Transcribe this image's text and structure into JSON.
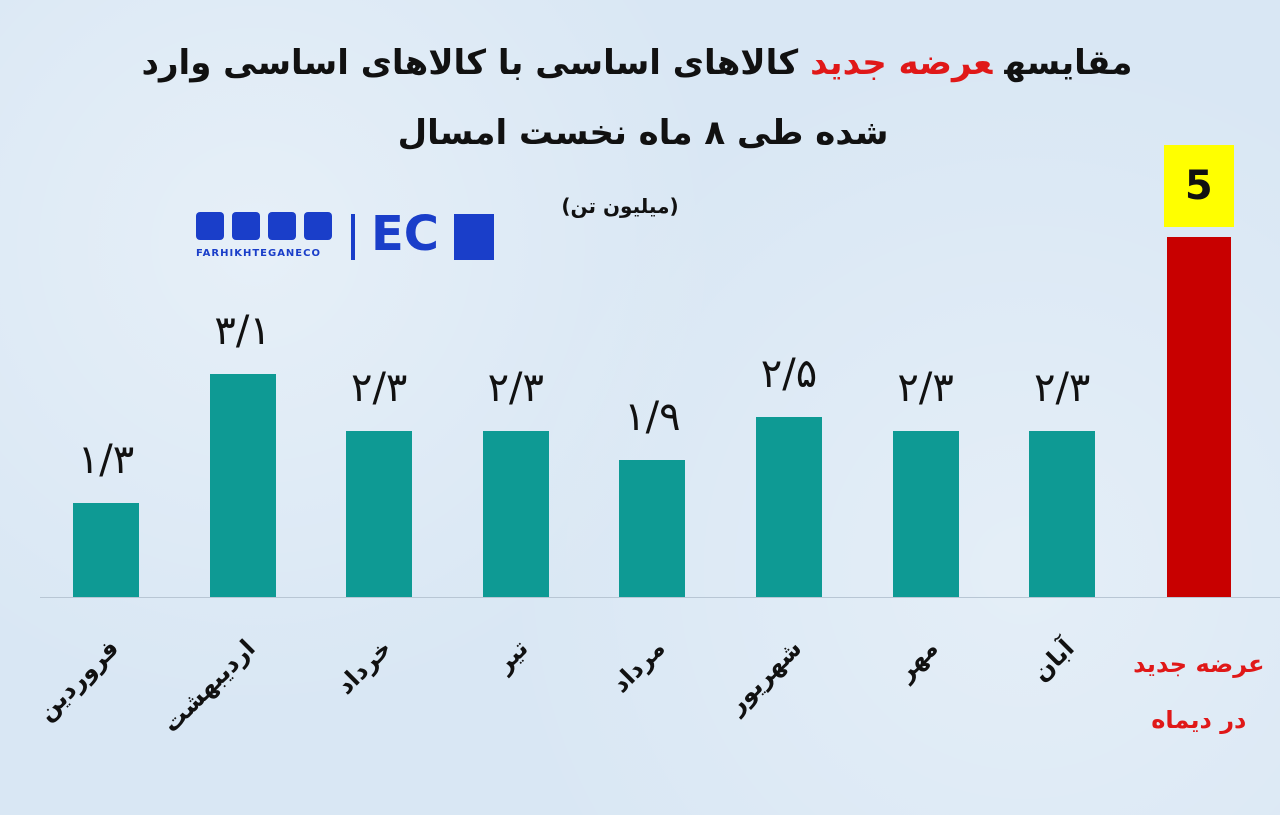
{
  "chart_data": {
    "type": "bar",
    "title_parts": [
      "مقایسه",
      "عرضه جدید",
      "کالاهای اساسی با کالاهای اساسی وارد شده طی ۸ ماه نخست امسال"
    ],
    "subtitle": "(میلیون تن)",
    "categories": [
      "فروردین",
      "اردیبهشت",
      "خرداد",
      "تیر",
      "مرداد",
      "شهریور",
      "مهر",
      "آبان",
      "عرضه جدید در دیماه"
    ],
    "values": [
      1.3,
      3.1,
      2.3,
      2.3,
      1.9,
      2.5,
      2.3,
      2.3,
      5
    ],
    "value_labels": [
      "۱/۳",
      "۳/۱",
      "۲/۳",
      "۲/۳",
      "۱/۹",
      "۲/۵",
      "۲/۳",
      "۲/۳",
      "5"
    ],
    "colors": [
      "#0e9a94",
      "#0e9a94",
      "#0e9a94",
      "#0e9a94",
      "#0e9a94",
      "#0e9a94",
      "#0e9a94",
      "#0e9a94",
      "#c80000"
    ]
  },
  "logo": {
    "site": "FARHIKHTEGANECO",
    "mark": "EC"
  }
}
